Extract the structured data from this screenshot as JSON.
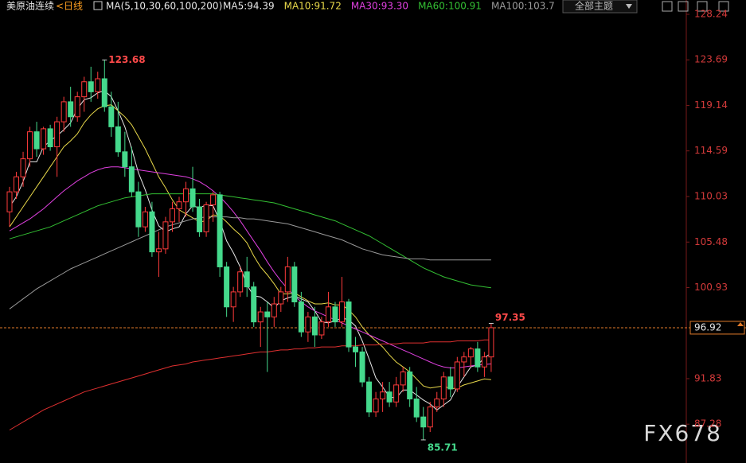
{
  "toolbar": {
    "dropdown": "全部主题"
  },
  "watermark": "FX678",
  "chart_data": {
    "type": "candlestick",
    "title": "美原油连续",
    "period": "<日线",
    "indicator": "MA(5,10,30,60,100,200)",
    "up_color": "#ff3b3b",
    "down_color": "#45d98c",
    "ylim": [
      83.4,
      129.67
    ],
    "yticks": [
      128.24,
      123.69,
      119.14,
      114.59,
      110.03,
      105.48,
      100.93,
      91.83,
      87.28
    ],
    "current_price": 96.92,
    "ohlc": [
      [
        108.5,
        111,
        107,
        110.5
      ],
      [
        110.5,
        112.5,
        109.8,
        112
      ],
      [
        112,
        114.5,
        111,
        113.8
      ],
      [
        113.8,
        117,
        113,
        116.5
      ],
      [
        116.5,
        117.5,
        114,
        114.8
      ],
      [
        114.8,
        117,
        114.2,
        116.8
      ],
      [
        116.8,
        117.2,
        114.6,
        115
      ],
      [
        115,
        118,
        112,
        117.5
      ],
      [
        117.5,
        120,
        116.5,
        119.5
      ],
      [
        119.5,
        121,
        117,
        118
      ],
      [
        118,
        120.5,
        117.5,
        120
      ],
      [
        120,
        122,
        118.5,
        121.5
      ],
      [
        121.5,
        123,
        119.5,
        120.5
      ],
      [
        120.5,
        122.5,
        119.8,
        121.8
      ],
      [
        121.8,
        123.68,
        118.5,
        119
      ],
      [
        119,
        120.5,
        116,
        117
      ],
      [
        117,
        119.5,
        114,
        114.5
      ],
      [
        114.5,
        116.5,
        112,
        113
      ],
      [
        113,
        115,
        110,
        110.5
      ],
      [
        110.5,
        111.5,
        106,
        107
      ],
      [
        107,
        109,
        106.5,
        108.5
      ],
      [
        108.5,
        109.5,
        104,
        104.5
      ],
      [
        104.5,
        106.5,
        102,
        104.8
      ],
      [
        104.8,
        108,
        104.3,
        107.5
      ],
      [
        107.5,
        109.5,
        106.5,
        108.8
      ],
      [
        108.8,
        110,
        107.5,
        109.5
      ],
      [
        109.5,
        111.5,
        108,
        110.8
      ],
      [
        110.8,
        113,
        108.5,
        109
      ],
      [
        109,
        109.8,
        106,
        106.5
      ],
      [
        106.5,
        109.5,
        106,
        109.2
      ],
      [
        109.2,
        110.5,
        107.5,
        110.2
      ],
      [
        110.2,
        110.5,
        102,
        103
      ],
      [
        103,
        103.5,
        98,
        99
      ],
      [
        99,
        101,
        97.5,
        100.5
      ],
      [
        100.5,
        103,
        100,
        102.5
      ],
      [
        102.5,
        104,
        100,
        101
      ],
      [
        101,
        101.5,
        97,
        97.5
      ],
      [
        97.5,
        99,
        95,
        98.5
      ],
      [
        98.5,
        99.5,
        92.5,
        98
      ],
      [
        98,
        100,
        97,
        99.3
      ],
      [
        99.3,
        101,
        98.5,
        100.5
      ],
      [
        100.5,
        104,
        99.5,
        103
      ],
      [
        103,
        103.5,
        99,
        99.5
      ],
      [
        99.5,
        100.5,
        96,
        96.5
      ],
      [
        96.5,
        98.5,
        95.5,
        98
      ],
      [
        98,
        99,
        95,
        96.2
      ],
      [
        96.2,
        98,
        95.8,
        97.5
      ],
      [
        97.5,
        100.5,
        97,
        99
      ],
      [
        99,
        99.5,
        97,
        97.5
      ],
      [
        97.5,
        102,
        97,
        99.5
      ],
      [
        99.5,
        99.8,
        94.5,
        95
      ],
      [
        95,
        96,
        93,
        94.5
      ],
      [
        94.5,
        95,
        91,
        91.5
      ],
      [
        91.5,
        92,
        88,
        88.5
      ],
      [
        88.5,
        90.5,
        88,
        89.8
      ],
      [
        89.8,
        91.5,
        88.5,
        90.5
      ],
      [
        90.5,
        91.5,
        89,
        89.5
      ],
      [
        89.5,
        92,
        89,
        91.2
      ],
      [
        91.2,
        93,
        90.5,
        92.5
      ],
      [
        92.5,
        93,
        89,
        89.8
      ],
      [
        89.8,
        91,
        87.5,
        88
      ],
      [
        88,
        89,
        85.71,
        87
      ],
      [
        87,
        89.5,
        86.5,
        89
      ],
      [
        89,
        90.5,
        88.5,
        89.8
      ],
      [
        89.8,
        92.5,
        89,
        92
      ],
      [
        92,
        93,
        90,
        90.8
      ],
      [
        90.8,
        94,
        90.5,
        93.5
      ],
      [
        93.5,
        94.5,
        92,
        94
      ],
      [
        94,
        95,
        93,
        94.8
      ],
      [
        94.8,
        95.5,
        92.5,
        93
      ],
      [
        93,
        94.5,
        92,
        94
      ],
      [
        94,
        97.35,
        92.5,
        96.92
      ]
    ],
    "series": [
      {
        "name": "MA5:94.39",
        "color": "#e6e6e6",
        "values": [
          109,
          110,
          111.5,
          113.5,
          113.5,
          115,
          115.6,
          116.1,
          116.7,
          117.4,
          118.8,
          119.7,
          119.9,
          120.4,
          120.6,
          120,
          118.6,
          117,
          114.8,
          112.4,
          110.7,
          108.7,
          107.1,
          106.5,
          106.8,
          107,
          108.3,
          109.1,
          108.9,
          109.2,
          109.1,
          107.6,
          105.6,
          104.4,
          103,
          101.2,
          100.1,
          100,
          99.5,
          98.9,
          99.6,
          99.9,
          100.1,
          99.8,
          99.5,
          98.6,
          97.5,
          97.4,
          97.6,
          97.9,
          97.7,
          97.1,
          95.6,
          93.8,
          91.9,
          91,
          90,
          89.9,
          90.7,
          90.7,
          90.2,
          89.7,
          89.3,
          88.7,
          89.2,
          89.7,
          91,
          92,
          93,
          93.2,
          93.9,
          94.39
        ]
      },
      {
        "name": "MA10:91.72",
        "color": "#e8d84a",
        "values": [
          107,
          108,
          109,
          110,
          111,
          112,
          113,
          114,
          115,
          115.6,
          116.3,
          117.4,
          118.2,
          118.8,
          119.1,
          119.2,
          118.6,
          118,
          117.2,
          116,
          114.8,
          113.4,
          112,
          110.9,
          109.7,
          108.7,
          108.3,
          107.9,
          107.5,
          107.6,
          108.2,
          108.1,
          107.5,
          106.8,
          106.2,
          105.4,
          104.1,
          103,
          102.2,
          101.3,
          100.3,
          100.3,
          100.4,
          100,
          99.6,
          99.3,
          99.3,
          99.4,
          99.2,
          99.2,
          98.7,
          98,
          97,
          96.2,
          95.6,
          95,
          94.2,
          93.5,
          93,
          92.5,
          91.8,
          91.1,
          90.9,
          91,
          91.1,
          90.8,
          90.9,
          91.2,
          91.4,
          91.6,
          91.8,
          91.72
        ]
      },
      {
        "name": "MA30:93.30",
        "color": "#e040e0",
        "values": [
          106.6,
          107,
          107.4,
          107.8,
          108.3,
          108.8,
          109.4,
          110,
          110.6,
          111.1,
          111.6,
          112,
          112.4,
          112.7,
          112.9,
          113,
          113,
          112.9,
          112.8,
          112.7,
          112.6,
          112.5,
          112.4,
          112.3,
          112.2,
          112.1,
          112,
          111.8,
          111.5,
          111.1,
          110.6,
          110,
          109.3,
          108.5,
          107.6,
          106.6,
          105.6,
          104.6,
          103.5,
          102.5,
          101.6,
          100.8,
          100.1,
          99.5,
          99,
          98.6,
          98.3,
          98,
          97.7,
          97.4,
          97.1,
          96.8,
          96.5,
          96.2,
          95.9,
          95.6,
          95.3,
          95,
          94.7,
          94.4,
          94.1,
          93.8,
          93.5,
          93.2,
          93,
          92.9,
          92.9,
          93,
          93.1,
          93.2,
          93.25,
          93.3
        ]
      },
      {
        "name": "MA60:100.91",
        "color": "#33c033",
        "values": [
          105.8,
          106,
          106.2,
          106.4,
          106.6,
          106.8,
          107,
          107.3,
          107.6,
          107.9,
          108.2,
          108.5,
          108.8,
          109.1,
          109.3,
          109.5,
          109.7,
          109.9,
          110,
          110.1,
          110.2,
          110.3,
          110.3,
          110.3,
          110.3,
          110.3,
          110.3,
          110.3,
          110.3,
          110.3,
          110.3,
          110.2,
          110.1,
          110,
          109.9,
          109.8,
          109.7,
          109.6,
          109.5,
          109.4,
          109.2,
          109,
          108.8,
          108.6,
          108.4,
          108.2,
          108,
          107.8,
          107.6,
          107.3,
          107,
          106.7,
          106.4,
          106.1,
          105.7,
          105.3,
          104.9,
          104.5,
          104.1,
          103.7,
          103.3,
          102.9,
          102.6,
          102.3,
          102,
          101.8,
          101.6,
          101.4,
          101.2,
          101.1,
          101,
          100.91
        ]
      },
      {
        "name": "MA100:103.7",
        "color": "#9a9a9a",
        "values": [
          98.8,
          99.3,
          99.8,
          100.3,
          100.8,
          101.2,
          101.6,
          102,
          102.4,
          102.8,
          103.1,
          103.4,
          103.7,
          104,
          104.3,
          104.6,
          104.9,
          105.2,
          105.5,
          105.8,
          106.1,
          106.4,
          106.7,
          107,
          107.2,
          107.4,
          107.6,
          107.8,
          107.9,
          108,
          108,
          108,
          108,
          107.9,
          107.9,
          107.8,
          107.8,
          107.7,
          107.6,
          107.5,
          107.4,
          107.3,
          107.1,
          106.9,
          106.7,
          106.5,
          106.3,
          106.1,
          105.9,
          105.7,
          105.4,
          105.1,
          104.8,
          104.6,
          104.4,
          104.2,
          104.1,
          104,
          103.9,
          103.8,
          103.8,
          103.8,
          103.7,
          103.7,
          103.7,
          103.7,
          103.7,
          103.7,
          103.7,
          103.7,
          103.7,
          103.7
        ]
      },
      {
        "color": "#e03030",
        "values": [
          86.7,
          87.1,
          87.5,
          87.9,
          88.3,
          88.7,
          89,
          89.3,
          89.6,
          89.9,
          90.2,
          90.5,
          90.7,
          90.9,
          91.1,
          91.3,
          91.5,
          91.7,
          91.9,
          92.1,
          92.3,
          92.5,
          92.7,
          92.9,
          93.1,
          93.2,
          93.3,
          93.5,
          93.6,
          93.7,
          93.8,
          93.9,
          94,
          94.1,
          94.2,
          94.3,
          94.4,
          94.5,
          94.5,
          94.6,
          94.7,
          94.7,
          94.8,
          94.8,
          94.9,
          94.9,
          95,
          95,
          95,
          95.1,
          95.1,
          95.1,
          95.2,
          95.2,
          95.2,
          95.3,
          95.3,
          95.3,
          95.4,
          95.4,
          95.4,
          95.4,
          95.5,
          95.5,
          95.5,
          95.5,
          95.6,
          95.6,
          95.6,
          95.6,
          95.7,
          95.7
        ]
      }
    ]
  }
}
